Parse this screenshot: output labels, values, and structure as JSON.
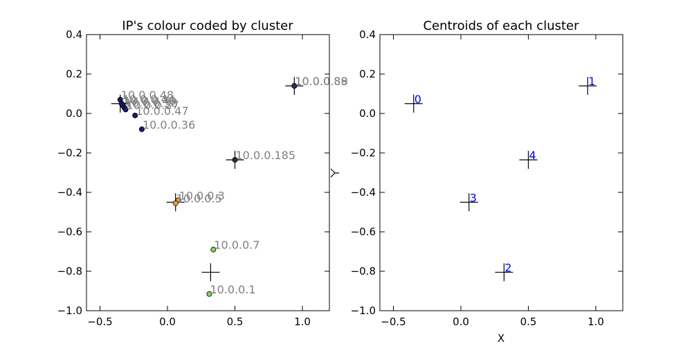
{
  "chart_data": [
    {
      "type": "scatter",
      "title": "IP's colour coded by cluster",
      "xlabel": "",
      "ylabel": "",
      "xlim": [
        -0.6,
        1.2
      ],
      "ylim": [
        -1.0,
        0.4
      ],
      "xticks": [
        -0.5,
        0.0,
        0.5,
        1.0
      ],
      "xtick_labels": [
        "−0.5",
        "0.0",
        "0.5",
        "1.0"
      ],
      "yticks": [
        -1.0,
        -0.8,
        -0.6,
        -0.4,
        -0.2,
        0.0,
        0.2,
        0.4
      ],
      "ytick_labels": [
        "−1.0",
        "−0.8",
        "−0.6",
        "−0.4",
        "−0.2",
        "0.0",
        "0.2",
        "0.4"
      ],
      "cluster_colors": [
        "#1a1a6e",
        "#2b2f5e",
        "#7fd35a",
        "#f59b3a",
        "#3a2a2a"
      ],
      "points": [
        {
          "x": -0.35,
          "y": 0.07,
          "cluster": 0,
          "label": "10.0.0.48"
        },
        {
          "x": -0.34,
          "y": 0.05,
          "cluster": 0,
          "label": "10.0.0.44"
        },
        {
          "x": -0.33,
          "y": 0.04,
          "cluster": 0,
          "label": "10.0.0.40"
        },
        {
          "x": -0.32,
          "y": 0.03,
          "cluster": 0,
          "label": "10.0.0.38"
        },
        {
          "x": -0.31,
          "y": 0.02,
          "cluster": 0,
          "label": "10.0.0.37"
        },
        {
          "x": -0.24,
          "y": -0.01,
          "cluster": 0,
          "label": "10.0.0.47"
        },
        {
          "x": -0.19,
          "y": -0.08,
          "cluster": 0,
          "label": "10.0.0.36"
        },
        {
          "x": 0.94,
          "y": 0.14,
          "cluster": 1,
          "label": "10.0.0.89"
        },
        {
          "x": 0.94,
          "y": 0.14,
          "cluster": 1,
          "label": "10.0.0.88"
        },
        {
          "x": 0.5,
          "y": -0.235,
          "cluster": 4,
          "label": "10.0.0.185"
        },
        {
          "x": 0.08,
          "y": -0.44,
          "cluster": 3,
          "label": "10.0.0.3"
        },
        {
          "x": 0.06,
          "y": -0.455,
          "cluster": 3,
          "label": "10.0.0.5"
        },
        {
          "x": 0.34,
          "y": -0.69,
          "cluster": 2,
          "label": "10.0.0.7"
        },
        {
          "x": 0.31,
          "y": -0.915,
          "cluster": 2,
          "label": "10.0.0.1"
        }
      ],
      "centroids": [
        {
          "x": -0.35,
          "y": 0.05
        },
        {
          "x": 0.94,
          "y": 0.14
        },
        {
          "x": 0.32,
          "y": -0.805
        },
        {
          "x": 0.06,
          "y": -0.45
        },
        {
          "x": 0.5,
          "y": -0.235
        }
      ]
    },
    {
      "type": "scatter",
      "title": "Centroids of each cluster",
      "xlabel": "X",
      "ylabel": "",
      "xlim": [
        -0.6,
        1.2
      ],
      "ylim": [
        -1.0,
        0.4
      ],
      "xticks": [
        -0.5,
        0.0,
        0.5,
        1.0
      ],
      "xtick_labels": [
        "−0.5",
        "0.0",
        "0.5",
        "1.0"
      ],
      "yticks": [
        -1.0,
        -0.8,
        -0.6,
        -0.4,
        -0.2,
        0.0,
        0.2,
        0.4
      ],
      "ytick_labels": [
        "−1.0",
        "−0.8",
        "−0.6",
        "−0.4",
        "−0.2",
        "0.0",
        "0.2",
        "0.4"
      ],
      "centroids": [
        {
          "x": -0.35,
          "y": 0.05,
          "label": "0"
        },
        {
          "x": 0.94,
          "y": 0.14,
          "label": "1"
        },
        {
          "x": 0.32,
          "y": -0.805,
          "label": "2"
        },
        {
          "x": 0.06,
          "y": -0.45,
          "label": "3"
        },
        {
          "x": 0.5,
          "y": -0.235,
          "label": "4"
        }
      ]
    }
  ]
}
